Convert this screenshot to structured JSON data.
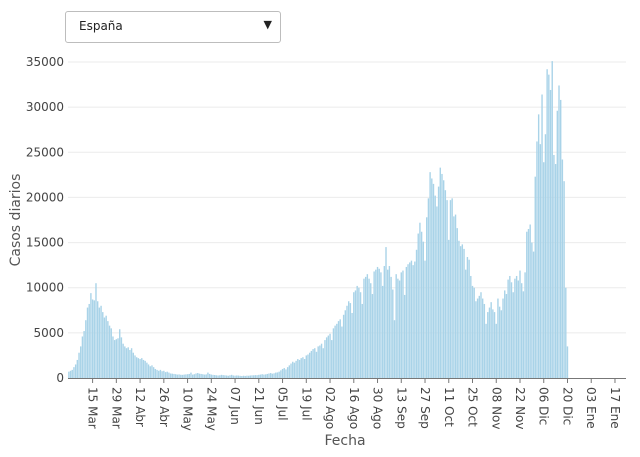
{
  "selector": {
    "selected": "España",
    "arrow": "▼"
  },
  "chart_data": {
    "type": "bar",
    "xlabel": "Fecha",
    "ylabel": "Casos diarios",
    "ylim": [
      0,
      35000
    ],
    "yticks": [
      0,
      5000,
      10000,
      15000,
      20000,
      25000,
      30000,
      35000
    ],
    "x_start": "2020-03-01",
    "x_end": "2021-01-23",
    "xticks": [
      {
        "date": "2020-03-15",
        "label": "15 Mar"
      },
      {
        "date": "2020-03-29",
        "label": "29 Mar"
      },
      {
        "date": "2020-04-12",
        "label": "12 Abr"
      },
      {
        "date": "2020-04-26",
        "label": "26 Abr"
      },
      {
        "date": "2020-05-10",
        "label": "10 May"
      },
      {
        "date": "2020-05-24",
        "label": "24 May"
      },
      {
        "date": "2020-06-07",
        "label": "07 Jun"
      },
      {
        "date": "2020-06-21",
        "label": "21 Jun"
      },
      {
        "date": "2020-07-05",
        "label": "05 Jul"
      },
      {
        "date": "2020-07-19",
        "label": "19 Jul"
      },
      {
        "date": "2020-08-02",
        "label": "02 Ago"
      },
      {
        "date": "2020-08-16",
        "label": "16 Ago"
      },
      {
        "date": "2020-08-30",
        "label": "30 Ago"
      },
      {
        "date": "2020-09-13",
        "label": "13 Sep"
      },
      {
        "date": "2020-09-27",
        "label": "27 Sep"
      },
      {
        "date": "2020-10-11",
        "label": "11 Oct"
      },
      {
        "date": "2020-10-25",
        "label": "25 Oct"
      },
      {
        "date": "2020-11-08",
        "label": "08 Nov"
      },
      {
        "date": "2020-11-22",
        "label": "22 Nov"
      },
      {
        "date": "2020-12-06",
        "label": "06 Dic"
      },
      {
        "date": "2020-12-20",
        "label": "20 Dic"
      },
      {
        "date": "2021-01-03",
        "label": "03 Ene"
      },
      {
        "date": "2021-01-17",
        "label": "17 Ene"
      }
    ],
    "colors": {
      "bar": "#a9d3e8",
      "grid": "#ebebeb",
      "axis": "#777777"
    },
    "values": [
      700,
      800,
      900,
      1200,
      1500,
      2000,
      2800,
      3500,
      4600,
      5200,
      6400,
      7800,
      8200,
      9400,
      8700,
      8600,
      10500,
      8500,
      7800,
      8000,
      7300,
      6700,
      6900,
      6300,
      5800,
      5500,
      4600,
      4200,
      4300,
      4400,
      5400,
      4500,
      3800,
      3500,
      3300,
      3400,
      3100,
      3300,
      2800,
      2500,
      2300,
      2200,
      2100,
      2200,
      2000,
      1900,
      1700,
      1500,
      1300,
      1400,
      1200,
      1000,
      900,
      800,
      900,
      750,
      800,
      650,
      700,
      600,
      500,
      480,
      450,
      420,
      380,
      400,
      360,
      350,
      380,
      400,
      420,
      450,
      600,
      380,
      420,
      500,
      550,
      480,
      450,
      420,
      380,
      400,
      600,
      450,
      380,
      350,
      330,
      300,
      280,
      300,
      350,
      320,
      300,
      280,
      250,
      300,
      350,
      280,
      260,
      280,
      270,
      240,
      220,
      250,
      230,
      260,
      250,
      280,
      300,
      300,
      320,
      310,
      350,
      380,
      420,
      380,
      400,
      450,
      500,
      550,
      480,
      520,
      600,
      620,
      700,
      850,
      1000,
      1100,
      950,
      1200,
      1400,
      1600,
      1800,
      1700,
      1900,
      2100,
      2000,
      2200,
      2300,
      2100,
      2500,
      2600,
      2800,
      3000,
      3200,
      3300,
      2900,
      3500,
      3600,
      3800,
      3300,
      4200,
      4500,
      4700,
      4900,
      4200,
      5500,
      5800,
      6000,
      6300,
      6500,
      5700,
      7000,
      7500,
      8000,
      8500,
      8300,
      7200,
      9500,
      9700,
      10200,
      10000,
      9500,
      8200,
      11000,
      11200,
      11500,
      11000,
      10500,
      9300,
      11800,
      12000,
      12300,
      12100,
      11700,
      10200,
      12400,
      14500,
      12000,
      12400,
      11200,
      9800,
      6400,
      11500,
      11000,
      10800,
      11700,
      11900,
      9200,
      12300,
      12600,
      12800,
      13000,
      12500,
      12900,
      14200,
      16000,
      17200,
      16200,
      15100,
      13000,
      17800,
      19900,
      22800,
      22100,
      21500,
      20200,
      19000,
      21200,
      23300,
      22600,
      21900,
      20800,
      19700,
      15300,
      19700,
      19900,
      17900,
      18100,
      16600,
      15200,
      14600,
      14800,
      14300,
      12000,
      13400,
      13100,
      11300,
      10200,
      10000,
      8500,
      8800,
      9100,
      9500,
      8800,
      8200,
      6000,
      7300,
      7800,
      8400,
      7600,
      7300,
      6000,
      8800,
      7900,
      7500,
      8800,
      9700,
      9300,
      10900,
      11300,
      10600,
      9500,
      11000,
      11300,
      10800,
      11900,
      10500,
      9600,
      11700,
      16200,
      16500,
      17000,
      15000,
      14000,
      22300,
      26200,
      29200,
      25900,
      31400,
      23900,
      27000,
      34200,
      33600,
      31900,
      35100,
      24700,
      23700,
      29600,
      32400,
      30800,
      24200,
      21800,
      10000,
      3500
    ]
  }
}
